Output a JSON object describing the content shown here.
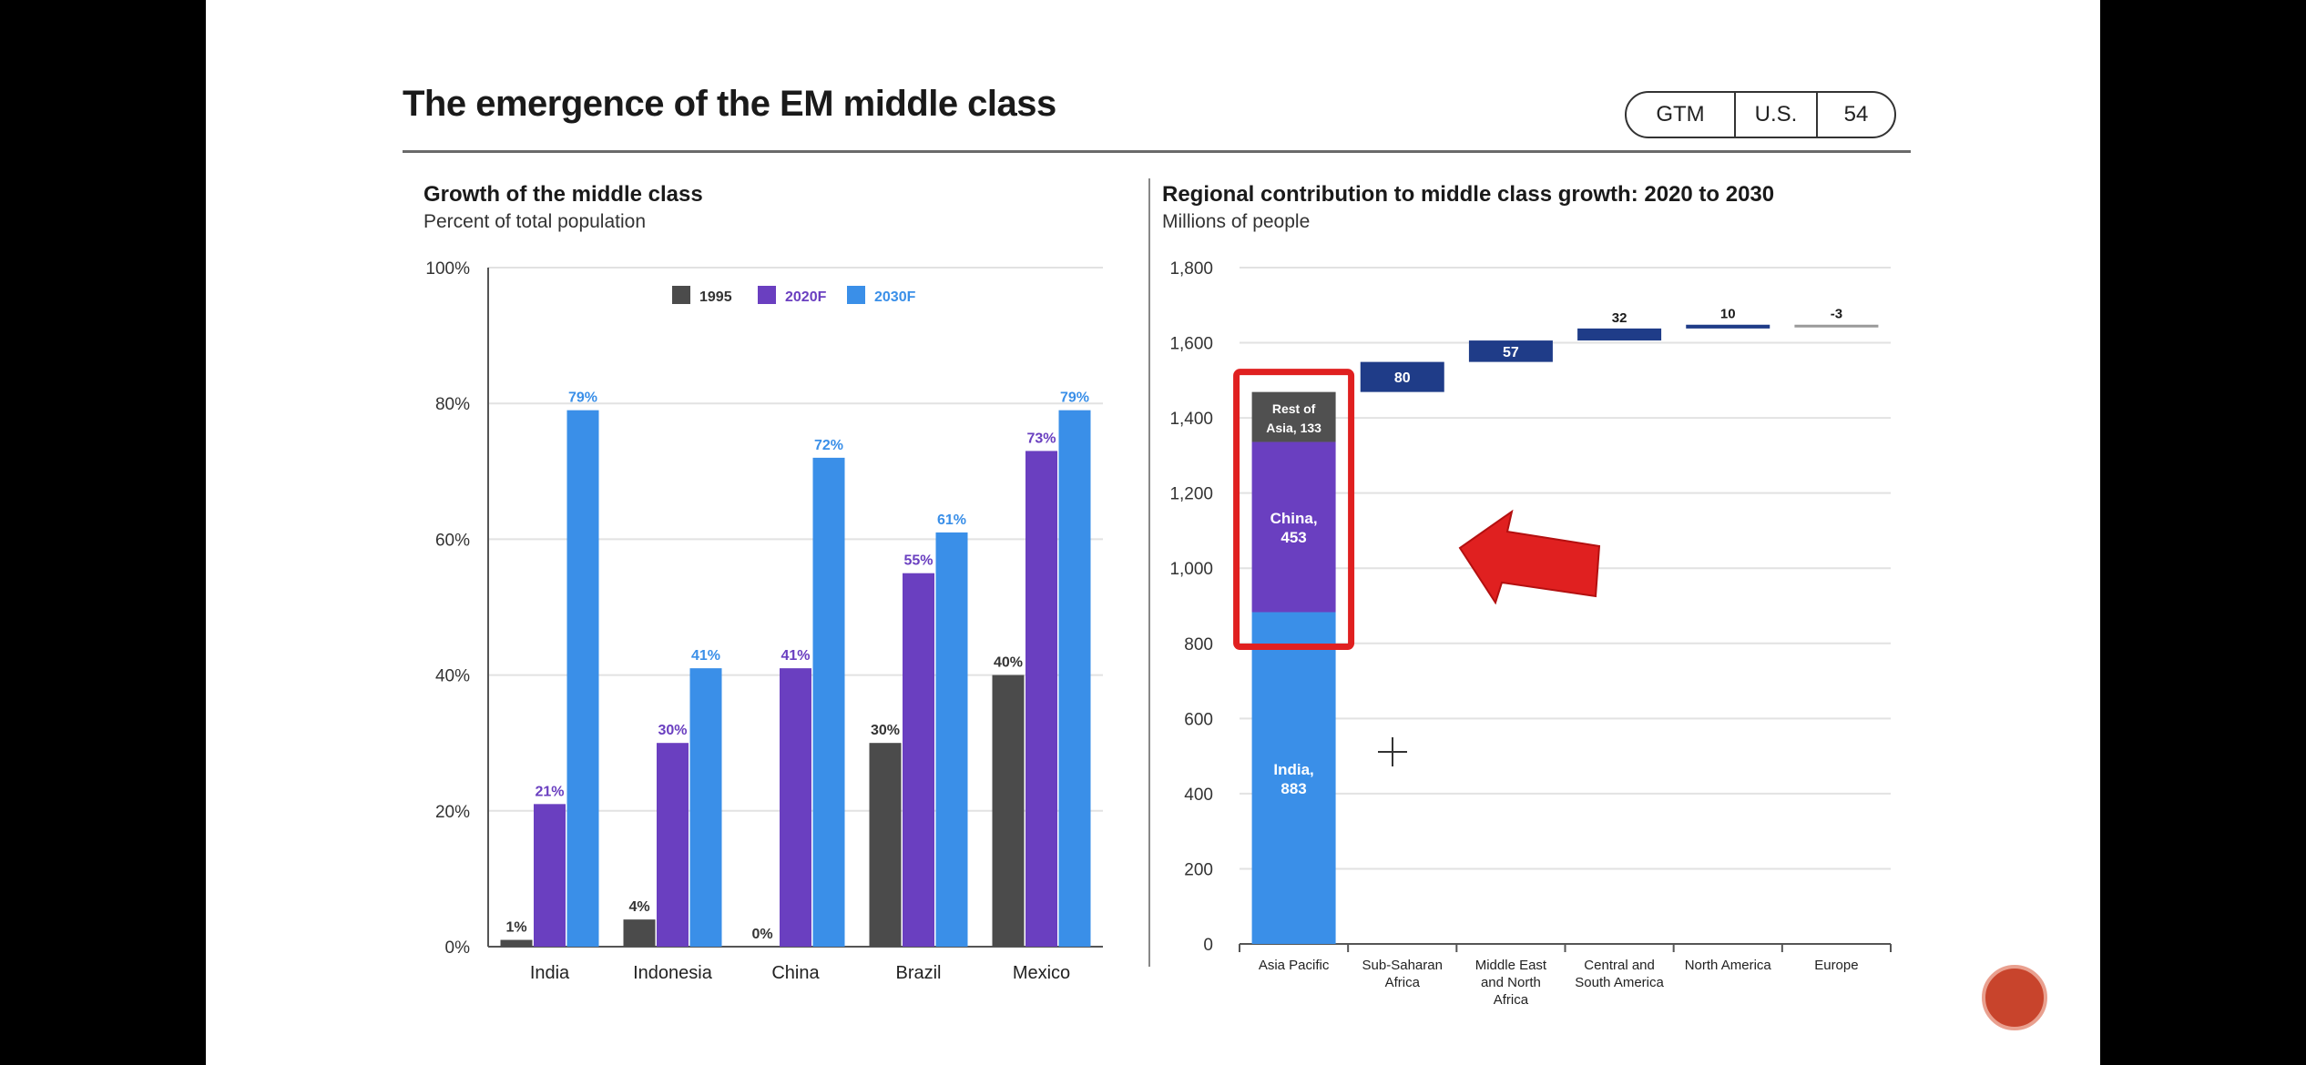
{
  "page": {
    "title": "The emergence of the EM middle class",
    "badge": [
      "GTM",
      "U.S.",
      "54"
    ]
  },
  "left": {
    "title": "Growth of the middle class",
    "subtitle": "Percent of total population"
  },
  "right": {
    "title": "Regional contribution to middle class growth: 2020 to 2030",
    "subtitle": "Millions of people"
  },
  "colors": {
    "c1995": "#4b4b4b",
    "c2020": "#6a3fc0",
    "c2030": "#3a8fe8",
    "navy": "#1f3c88",
    "gray": "#505050",
    "annotation": "#e02020"
  },
  "chart_data": [
    {
      "type": "bar",
      "title": "Growth of the middle class",
      "subtitle": "Percent of total population",
      "categories": [
        "India",
        "Indonesia",
        "China",
        "Brazil",
        "Mexico"
      ],
      "series": [
        {
          "name": "1995",
          "values": [
            1,
            4,
            0,
            30,
            40
          ],
          "labels": [
            "1%",
            "4%",
            "0%",
            "30%",
            "40%"
          ]
        },
        {
          "name": "2020F",
          "values": [
            21,
            30,
            41,
            55,
            73
          ],
          "labels": [
            "21%",
            "30%",
            "41%",
            "55%",
            "73%"
          ]
        },
        {
          "name": "2030F",
          "values": [
            79,
            41,
            72,
            61,
            79
          ],
          "labels": [
            "79%",
            "41%",
            "72%",
            "61%",
            "79%"
          ]
        }
      ],
      "ylim": [
        0,
        100
      ],
      "yticks": [
        "0%",
        "20%",
        "40%",
        "60%",
        "80%",
        "100%"
      ],
      "grid": true,
      "legend": "top"
    },
    {
      "type": "bar",
      "subtype": "waterfall",
      "title": "Regional contribution to middle class growth: 2020 to 2030",
      "subtitle": "Millions of people",
      "categories": [
        "Asia Pacific",
        "Sub-Saharan Africa",
        "Middle East and North Africa",
        "Central and South America",
        "North America",
        "Europe"
      ],
      "category_lines": [
        [
          "Asia Pacific"
        ],
        [
          "Sub-Saharan",
          "Africa"
        ],
        [
          "Middle East",
          "and North",
          "Africa"
        ],
        [
          "Central and",
          "South America"
        ],
        [
          "North America"
        ],
        [
          "Europe"
        ]
      ],
      "asia_pacific_stack": [
        {
          "name": "India",
          "value": 883,
          "label": [
            "India,",
            "883"
          ]
        },
        {
          "name": "China",
          "value": 453,
          "label": [
            "China,",
            "453"
          ]
        },
        {
          "name": "Rest of Asia",
          "value": 133,
          "label": [
            "Rest of",
            "Asia, 133"
          ]
        }
      ],
      "increments": [
        80,
        57,
        32,
        10,
        -3
      ],
      "increment_labels": [
        "80",
        "57",
        "32",
        "10",
        "-3"
      ],
      "ylim": [
        0,
        1800
      ],
      "yticks": [
        "0",
        "200",
        "400",
        "600",
        "800",
        "1,000",
        "1,200",
        "1,400",
        "1,600",
        "1,800"
      ],
      "grid": true
    }
  ]
}
